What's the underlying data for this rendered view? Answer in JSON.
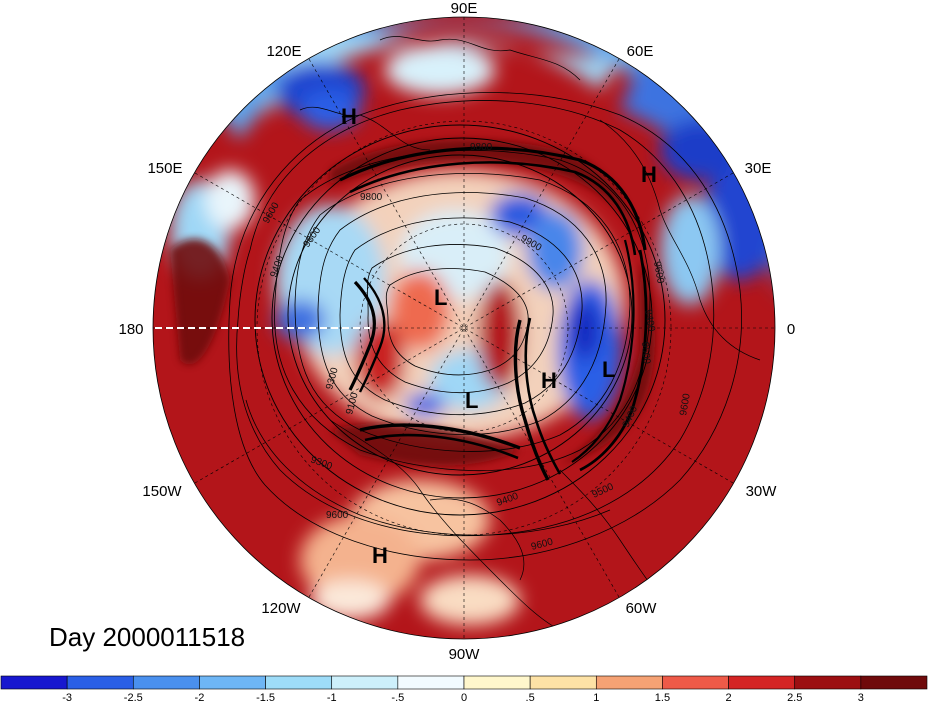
{
  "map": {
    "day_label": "Day 2000011518",
    "longitude_labels": {
      "top": "90E",
      "upper_left": "120E",
      "upper_right": "60E",
      "left_upper": "150E",
      "right_upper": "30E",
      "left": "180",
      "right": "0",
      "left_lower": "150W",
      "right_lower": "30W",
      "lower_left": "120W",
      "lower_right": "60W",
      "bottom": "90W"
    },
    "pressure_centers": [
      "H",
      "H",
      "L",
      "L",
      "H",
      "L",
      "H"
    ],
    "contour_labels": [
      "9600",
      "9400",
      "9800",
      "9600",
      "9900",
      "9800",
      "9400",
      "9600",
      "9300",
      "9100",
      "9300",
      "9600",
      "9400",
      "9500",
      "9600",
      "9600",
      "9500",
      "9400"
    ],
    "colorbar": {
      "ticks": [
        "-3",
        "-2.5",
        "-2",
        "-1.5",
        "-1",
        "-.5",
        "0",
        ".5",
        "1",
        "1.5",
        "2",
        "2.5",
        "3"
      ],
      "colors": [
        "#1717cf",
        "#2a5fe6",
        "#4a90ee",
        "#6eb6f5",
        "#9edcf8",
        "#cdf0fb",
        "#f2fbff",
        "#fff7cc",
        "#fde2a6",
        "#f5a274",
        "#ee5a48",
        "#d42424",
        "#9c0f12",
        "#6f0a0b"
      ]
    },
    "colors": {
      "deep_red": "#a50f15",
      "warm_red": "#e0352e",
      "cold_blue": "#2a4fd8",
      "light_blue": "#bfe6fa",
      "contour": "#000000"
    }
  }
}
